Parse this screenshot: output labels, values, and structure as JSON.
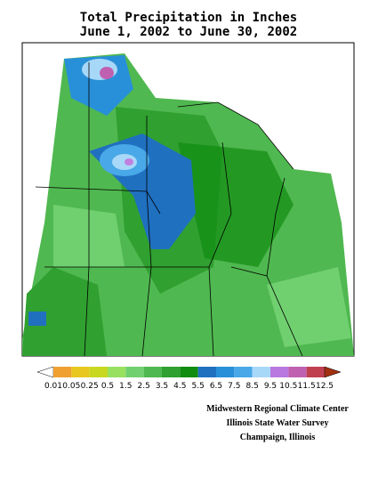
{
  "header": {
    "title": "Total Precipitation in Inches",
    "subtitle": "June 1, 2002 to June 30, 2002"
  },
  "legend": {
    "labels": [
      "0.01",
      "0.05",
      "0.25",
      "0.5",
      "1.5",
      "2.5",
      "3.5",
      "4.5",
      "5.5",
      "6.5",
      "7.5",
      "8.5",
      "9.5",
      "10.5",
      "11.5",
      "12.5"
    ],
    "colors": [
      "#ffffff",
      "#f0a030",
      "#e8c820",
      "#c8d820",
      "#98e060",
      "#70d070",
      "#50b850",
      "#30a030",
      "#108c10",
      "#2070c0",
      "#2890d8",
      "#48a8e8",
      "#a8d8f8",
      "#b878e0",
      "#c060b0",
      "#c04050",
      "#a03010"
    ]
  },
  "credits": [
    "Midwestern Regional Climate Center",
    "Illinois State Water Survey",
    "Champaign, Illinois"
  ]
}
